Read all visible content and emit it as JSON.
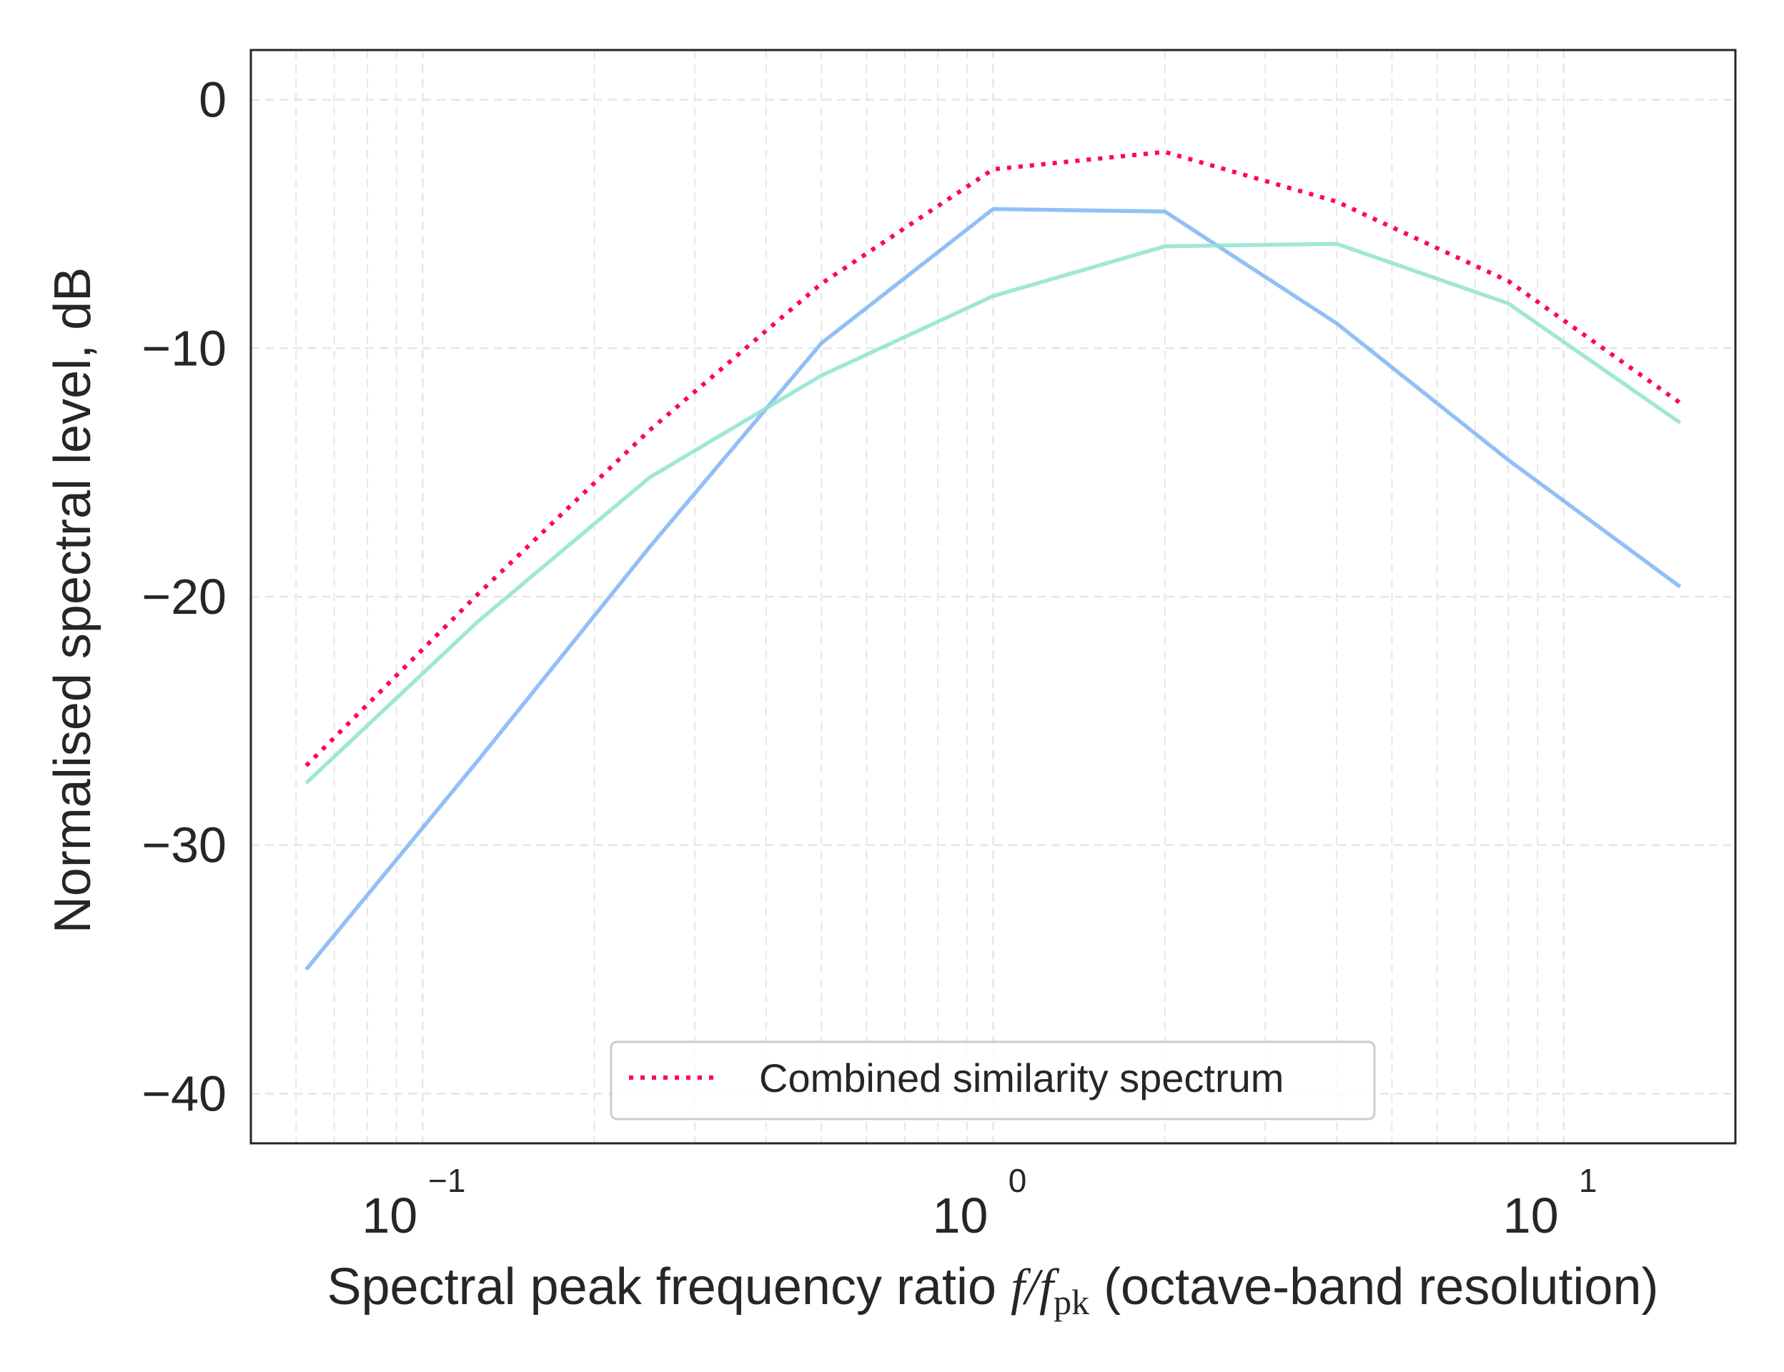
{
  "chart_data": {
    "type": "line",
    "xscale": "log",
    "xlim": [
      0.05,
      20
    ],
    "ylim": [
      -42,
      2
    ],
    "grid": true,
    "legend_position": "bottom-center",
    "xlabel": {
      "prefix": "Spectral peak frequency ratio ",
      "f": "f",
      "slash": "/",
      "fpk": "f",
      "sub": "pk",
      "suffix": " (octave-band resolution)"
    },
    "ylabel": "Normalised spectral level, dB",
    "xticks": [
      {
        "value": 0.1,
        "base": "10",
        "exp": "−1"
      },
      {
        "value": 1,
        "base": "10",
        "exp": "0"
      },
      {
        "value": 10,
        "base": "10",
        "exp": "1"
      }
    ],
    "yticks": [
      {
        "value": 0,
        "label": "0"
      },
      {
        "value": -10,
        "label": "−10"
      },
      {
        "value": -20,
        "label": "−20"
      },
      {
        "value": -30,
        "label": "−30"
      },
      {
        "value": -40,
        "label": "−40"
      }
    ],
    "x": [
      0.0625,
      0.125,
      0.25,
      0.5,
      1,
      2,
      4,
      8,
      16
    ],
    "series": [
      {
        "name": "Combined similarity spectrum",
        "color": "#ff0066",
        "style": "dotted",
        "values": [
          -26.8,
          -19.9,
          -13.3,
          -7.4,
          -2.8,
          -2.1,
          -4.1,
          -7.3,
          -12.2
        ]
      },
      {
        "name": "",
        "color": "#7fb5f5",
        "style": "solid",
        "values": [
          -35.0,
          -26.6,
          -18.0,
          -9.8,
          -4.4,
          -4.5,
          -9.0,
          -14.5,
          -19.6
        ]
      },
      {
        "name": "",
        "color": "#8fe3d0",
        "style": "solid",
        "values": [
          -27.5,
          -21.0,
          -15.2,
          -11.1,
          -7.9,
          -5.9,
          -5.8,
          -8.2,
          -13.0
        ]
      }
    ]
  }
}
